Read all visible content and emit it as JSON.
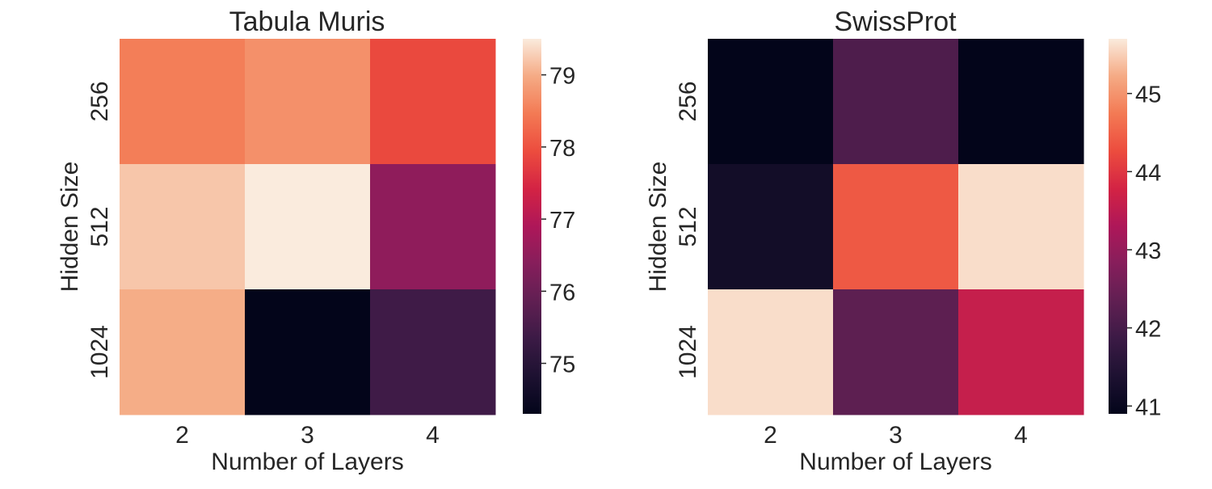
{
  "chart_data": [
    {
      "type": "heatmap",
      "title": "Tabula Muris",
      "xlabel": "Number of Layers",
      "ylabel": "Hidden Size",
      "x_categories": [
        "2",
        "3",
        "4"
      ],
      "y_categories": [
        "256",
        "512",
        "1024"
      ],
      "values": [
        [
          78.5,
          78.7,
          77.9
        ],
        [
          79.2,
          79.5,
          76.5
        ],
        [
          79.0,
          74.3,
          75.4
        ]
      ],
      "colorbar": {
        "min": 74.3,
        "max": 79.5,
        "ticks": [
          "75",
          "76",
          "77",
          "78",
          "79"
        ]
      },
      "colormap": "rocket"
    },
    {
      "type": "heatmap",
      "title": "SwissProt",
      "xlabel": "Number of Layers",
      "ylabel": "Hidden Size",
      "x_categories": [
        "2",
        "3",
        "4"
      ],
      "y_categories": [
        "256",
        "512",
        "1024"
      ],
      "values": [
        [
          40.9,
          42.1,
          40.9
        ],
        [
          41.2,
          44.4,
          45.6
        ],
        [
          45.6,
          42.3,
          43.6
        ]
      ],
      "colorbar": {
        "min": 40.9,
        "max": 45.7,
        "ticks": [
          "41",
          "42",
          "43",
          "44",
          "45"
        ]
      },
      "colormap": "rocket"
    }
  ]
}
